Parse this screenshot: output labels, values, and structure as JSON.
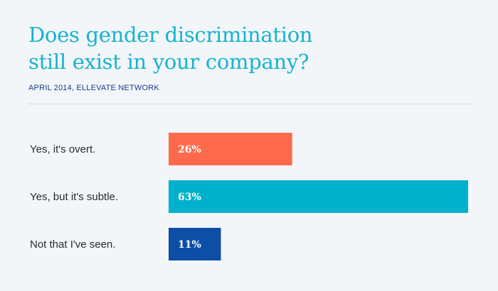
{
  "header": {
    "title_line1": "Does gender discrimination",
    "title_line2": "still exist in your company?",
    "subtitle": "APRIL 2014, ELLEVATE NETWORK"
  },
  "chart_data": {
    "type": "bar",
    "orientation": "horizontal",
    "title": "Does gender discrimination still exist in your company?",
    "subtitle": "APRIL 2014, ELLEVATE NETWORK",
    "categories": [
      "Yes, it's overt.",
      "Yes, but it's subtle.",
      "Not that I've seen."
    ],
    "values": [
      26,
      63,
      11
    ],
    "value_labels": [
      "26%",
      "63%",
      "11%"
    ],
    "colors": [
      "#ff6a4d",
      "#00b1cd",
      "#0d4ea6"
    ],
    "xlim": [
      0,
      63
    ],
    "grid": false,
    "legend": "none"
  }
}
